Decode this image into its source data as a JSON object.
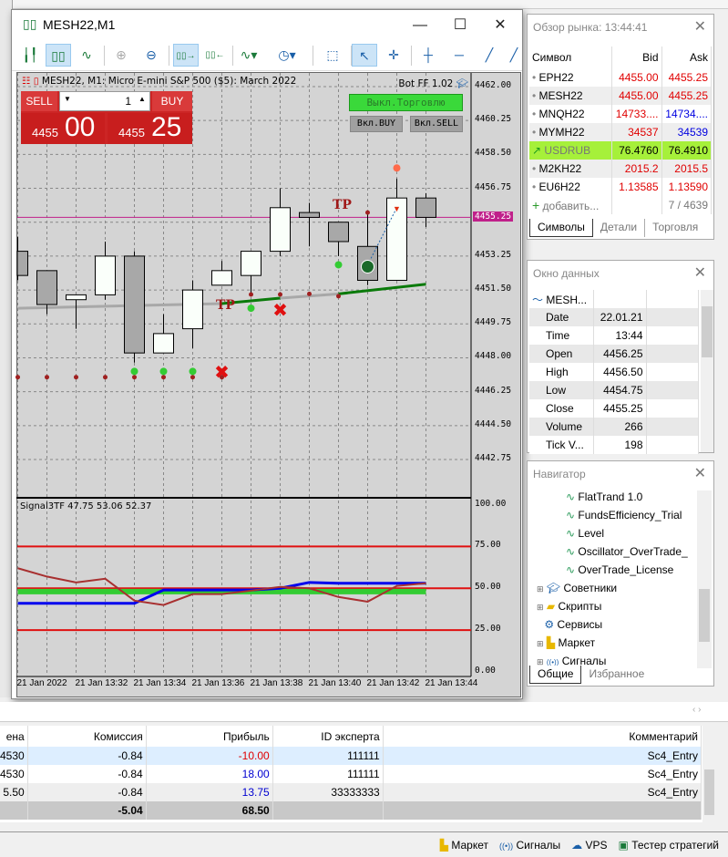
{
  "chart_window": {
    "title": "MESH22,M1",
    "info": "MESH22, M1:  Micro E-mini S&P 500 ($5): March 2022",
    "bot": "Bot FF 1.02",
    "sell_label": "SELL",
    "buy_label": "BUY",
    "lot": "1",
    "sell_big": "4455",
    "sell_small": "00",
    "buy_big": "4455",
    "buy_small": "25",
    "trade_off": "Выкл.Торговлю",
    "enable_buy": "Вкл.BUY",
    "enable_sell": "Вкл.SELL",
    "indicator_label": "Signal3TF 47.75 53.06 52.37",
    "ask_label": "4455.25"
  },
  "chart_data": {
    "type": "candlestick",
    "price_ticks": [
      "4462.00",
      "4460.25",
      "4458.50",
      "4456.75",
      "4455.00",
      "4453.25",
      "4451.50",
      "4449.75",
      "4448.00",
      "4446.25",
      "4444.50",
      "4442.75"
    ],
    "time_labels": [
      "21 Jan 2022",
      "21 Jan 13:32",
      "21 Jan 13:34",
      "21 Jan 13:36",
      "21 Jan 13:38",
      "21 Jan 13:40",
      "21 Jan 13:42",
      "21 Jan 13:44"
    ],
    "candles": [
      [
        4453.5,
        4454.25,
        4452,
        4452.25
      ],
      [
        4452.5,
        4452.5,
        4450.25,
        4450.75
      ],
      [
        4451,
        4451.25,
        4449.5,
        4451.25
      ],
      [
        4451.25,
        4454,
        4451,
        4453.25
      ],
      [
        4453.25,
        4453.5,
        4447.75,
        4448.25
      ],
      [
        4448.25,
        4450.25,
        4448.25,
        4449.25
      ],
      [
        4449.5,
        4452,
        4448.5,
        4451.5
      ],
      [
        4451.75,
        4453,
        4451.75,
        4452.5
      ],
      [
        4452.25,
        4453.5,
        4451.25,
        4453.5
      ],
      [
        4453.5,
        4456.75,
        4453.25,
        4455.75
      ],
      [
        4455.5,
        4456,
        4453.75,
        4455.25
      ],
      [
        4455,
        4455,
        4453.25,
        4454
      ],
      [
        4453.75,
        4455.5,
        4451.75,
        4452
      ],
      [
        4452,
        4457.25,
        4452,
        4456.25
      ],
      [
        4456.25,
        4456.5,
        4454.75,
        4455.25
      ]
    ],
    "ask": 4455.25,
    "ma": [
      [
        0,
        4450.56,
        "gray"
      ],
      [
        7,
        4450.8,
        "green"
      ],
      [
        9,
        4451.08,
        "gray"
      ],
      [
        11,
        4451.3,
        "green"
      ],
      [
        14,
        4451.8,
        "green"
      ]
    ],
    "red_dots": [
      [
        0,
        4447.0
      ],
      [
        1,
        4447.0
      ],
      [
        2,
        4447.0
      ],
      [
        3,
        4447.0
      ],
      [
        4,
        4447.0
      ],
      [
        5,
        4447.0
      ],
      [
        6,
        4447.0
      ],
      [
        7,
        4447.0
      ],
      [
        8,
        4451.27
      ],
      [
        9,
        4451.27
      ],
      [
        10,
        4451.3
      ],
      [
        11,
        4451.18
      ],
      [
        12,
        4455.5
      ]
    ],
    "green_dots": [
      [
        4,
        4447.3
      ],
      [
        5,
        4447.3
      ],
      [
        6,
        4447.3
      ],
      [
        8,
        4450.56
      ],
      [
        11,
        4452.8
      ]
    ],
    "x_marks": [
      [
        7,
        4447.27
      ],
      [
        9,
        4450.47
      ]
    ],
    "tp_marks": [
      [
        7,
        4450.8
      ],
      [
        11,
        4455.98
      ]
    ],
    "orange_dot": [
      13,
      4457.8
    ],
    "indicator": {
      "levels": [
        75,
        50,
        25
      ],
      "ticks": [
        "100.00",
        "75.00",
        "50.00",
        "25.00",
        "0.00"
      ],
      "brown": [
        62,
        57,
        53.5,
        55.7,
        42.6,
        40,
        46.5,
        46.5,
        48.6,
        50.8,
        50,
        44.8,
        42,
        51.4,
        53
      ],
      "blue": [
        41,
        41,
        41,
        41,
        41,
        49,
        49,
        49,
        49,
        50,
        53.5,
        53,
        53,
        53,
        53
      ],
      "green": [
        48,
        48,
        48,
        48,
        48,
        48,
        48,
        48,
        48,
        48,
        48,
        48,
        48,
        48,
        48
      ]
    },
    "colors": {
      "bg": "#d4d4d4",
      "bull": "#fafffa",
      "bear": "#a8a8a8",
      "ask": "#c0208a",
      "ma_gray": "#a8a8a8",
      "ma_green": "#0a7a0a"
    }
  },
  "market_watch": {
    "title": "Обзор рынка: 13:44:41",
    "headers": [
      "Символ",
      "Bid",
      "Ask"
    ],
    "rows": [
      {
        "s": "EPH22",
        "b": "4455.00",
        "a": "4455.25"
      },
      {
        "s": "MESH22",
        "b": "4455.00",
        "a": "4455.25"
      },
      {
        "s": "MNQH22",
        "b": "14733....",
        "a": "14734...."
      },
      {
        "s": "MYMH22",
        "b": "34537",
        "a": "34539"
      },
      {
        "s": "USDRUB",
        "b": "76.4760",
        "a": "76.4910"
      },
      {
        "s": "M2KH22",
        "b": "2015.2",
        "a": "2015.5"
      },
      {
        "s": "EU6H22",
        "b": "1.13585",
        "a": "1.13590"
      }
    ],
    "add": "добавить...",
    "count": "7 / 4639",
    "tabs": [
      "Символы",
      "Детали",
      "Торговля"
    ]
  },
  "data_window": {
    "title": "Окно данных",
    "symbol": "MESH...",
    "rows": [
      [
        "Date",
        "22.01.21"
      ],
      [
        "Time",
        "13:44"
      ],
      [
        "Open",
        "4456.25"
      ],
      [
        "High",
        "4456.50"
      ],
      [
        "Low",
        "4454.75"
      ],
      [
        "Close",
        "4455.25"
      ],
      [
        "Volume",
        "266"
      ],
      [
        "Tick V...",
        "198"
      ]
    ]
  },
  "navigator": {
    "title": "Навигатор",
    "indicators": [
      "FlatTrand 1.0",
      "FundsEfficiency_Trial",
      "Level",
      "Oscillator_OverTrade_",
      "OverTrade_License"
    ],
    "folders": [
      "Советники",
      "Скрипты",
      "Сервисы",
      "Маркет",
      "Сигналы"
    ],
    "tabs": [
      "Общие",
      "Избранное"
    ]
  },
  "trades": {
    "headers": [
      "ена",
      "Комиссия",
      "Прибыль",
      "ID эксперта",
      "Комментарий"
    ],
    "rows": [
      [
        "4530",
        "-0.84",
        "-10.00",
        "111111",
        "Sc4_Entry"
      ],
      [
        "4530",
        "-0.84",
        "18.00",
        "111111",
        "Sc4_Entry"
      ],
      [
        "5.50",
        "-0.84",
        "13.75",
        "33333333",
        "Sc4_Entry"
      ]
    ],
    "total": {
      "commission": "-5.04",
      "profit": "68.50"
    }
  },
  "statusbar": {
    "items": [
      "Маркет",
      "Сигналы",
      "VPS",
      "Тестер стратегий"
    ]
  }
}
